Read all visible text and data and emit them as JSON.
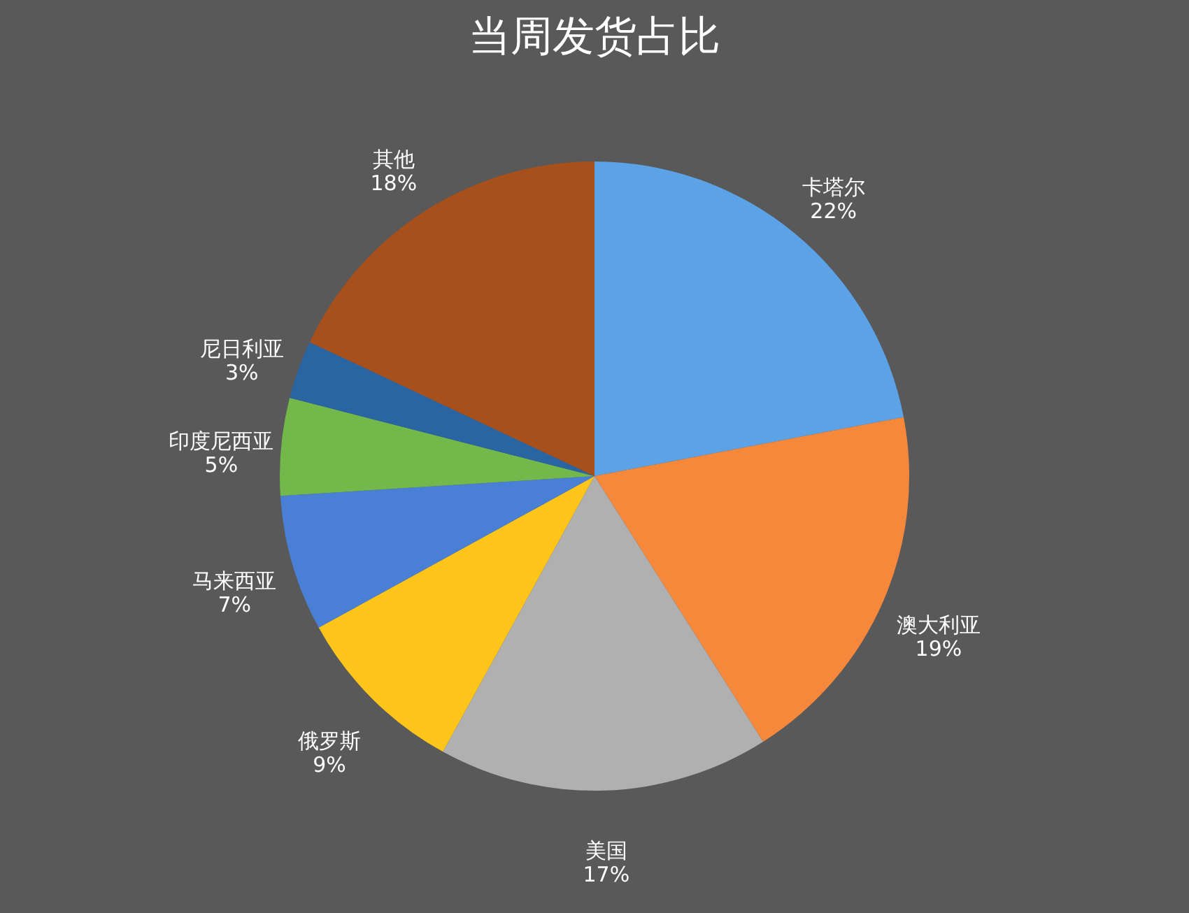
{
  "chart_data": {
    "type": "pie",
    "title": "当周发货占比",
    "categories": [
      "卡塔尔",
      "澳大利亚",
      "美国",
      "俄罗斯",
      "马来西亚",
      "印度尼西亚",
      "尼日利亚",
      "其他"
    ],
    "values": [
      22,
      19,
      17,
      9,
      7,
      5,
      3,
      18
    ],
    "value_labels": [
      "22%",
      "19%",
      "17%",
      "9%",
      "7%",
      "5%",
      "3%",
      "18%"
    ],
    "colors": [
      "#5ba3e6",
      "#f5883a",
      "#b0b0b0",
      "#ffc51a",
      "#4a7fd6",
      "#72b84a",
      "#2a65a3",
      "#a8501c"
    ],
    "legend": false
  }
}
